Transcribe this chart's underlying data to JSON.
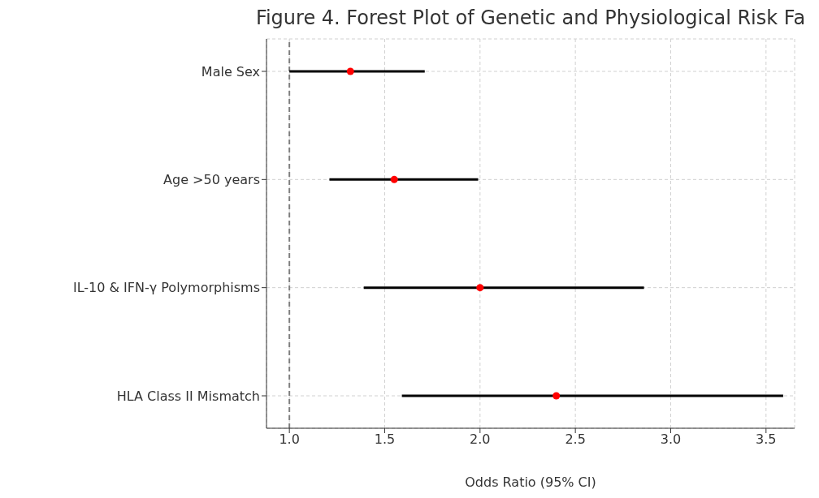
{
  "chart_data": {
    "type": "scatter",
    "orientation": "horizontal",
    "title": "Figure 4. Forest Plot of Genetic and Physiological Risk Fa",
    "xlabel": "Odds Ratio (95% CI)",
    "categories": [
      "Male Sex",
      "Age >50 years",
      "IL-10 & IFN-γ Polymorphisms",
      "HLA Class II Mismatch"
    ],
    "values": [
      1.32,
      1.55,
      2.0,
      2.4
    ],
    "errors": [
      [
        1.0,
        1.71
      ],
      [
        1.21,
        1.99
      ],
      [
        1.39,
        2.86
      ],
      [
        1.59,
        3.59
      ]
    ],
    "color": "#ff0000",
    "xlim": [
      0.88,
      3.65
    ],
    "xticks": [
      {
        "value": 1,
        "label": "1.0"
      },
      {
        "value": 1.5,
        "label": "1.5"
      },
      {
        "value": 2,
        "label": "2.0"
      },
      {
        "value": 2.5,
        "label": "2.5"
      },
      {
        "value": 3,
        "label": "3.0"
      },
      {
        "value": 3.5,
        "label": "3.5"
      }
    ],
    "ref_lines": [
      {
        "axis": "x",
        "value": 1.0,
        "color": "#808080",
        "line_style": "dashed"
      }
    ],
    "grid": true,
    "marker": "circle"
  }
}
